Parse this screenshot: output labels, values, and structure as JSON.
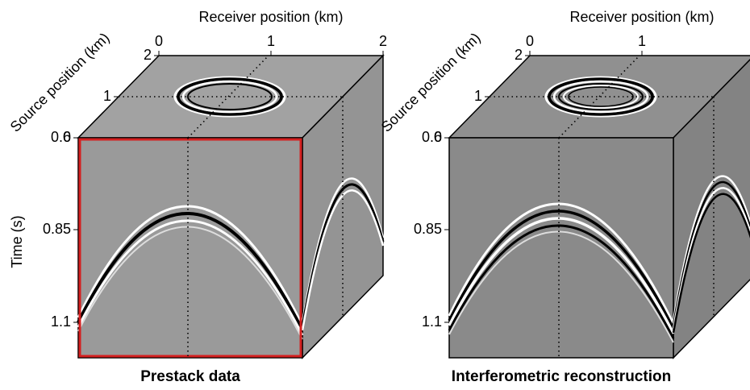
{
  "panels": [
    {
      "caption": "Prestack data",
      "receiver_axis": {
        "label": "Receiver position (km)",
        "ticks": [
          "0",
          "1",
          "2"
        ]
      },
      "source_axis": {
        "label": "Source position (km)",
        "ticks": [
          "2",
          "1",
          "0"
        ]
      },
      "time_axis": {
        "label": "Time (s)",
        "ticks": [
          "0.6",
          "0.85",
          "1.1"
        ]
      }
    },
    {
      "caption": "Interferometric reconstruction",
      "receiver_axis": {
        "label": "Receiver position (km)",
        "ticks": [
          "0",
          "1",
          "2"
        ]
      },
      "source_axis": {
        "label": "Source position (km)",
        "ticks": [
          "2",
          "1",
          "0"
        ]
      },
      "time_axis": {
        "ticks": [
          "0.6",
          "0.85",
          "1.1"
        ]
      }
    }
  ]
}
